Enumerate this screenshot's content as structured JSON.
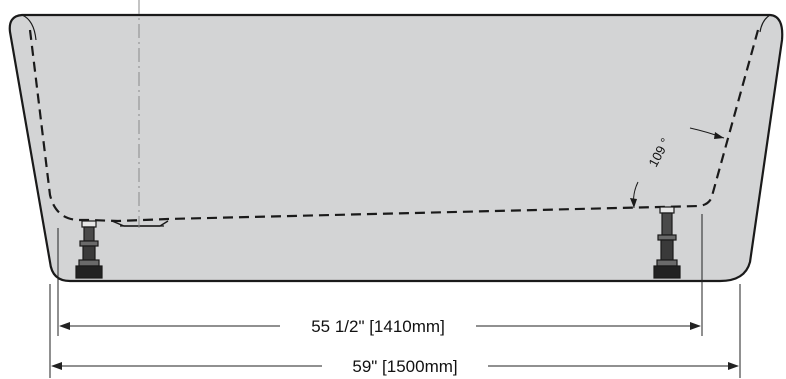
{
  "diagram": {
    "dimensions": {
      "inner_length": "55 1/2\" [1410mm]",
      "overall_length": "59\" [1500mm]"
    },
    "angle_label": "109 °",
    "colors": {
      "tub_fill": "#d3d4d5",
      "outline": "#1a1a1a",
      "centerline": "#8a8a8a",
      "dimension_line": "#222222"
    }
  }
}
